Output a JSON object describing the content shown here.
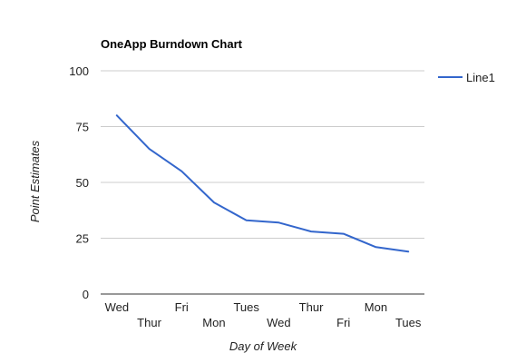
{
  "chart_data": {
    "type": "line",
    "title": "OneApp Burndown Chart",
    "xlabel": "Day of Week",
    "ylabel": "Point Estimates",
    "categories": [
      "Wed",
      "Thur",
      "Fri",
      "Mon",
      "Tues",
      "Wed",
      "Thur",
      "Fri",
      "Mon",
      "Tues"
    ],
    "series": [
      {
        "name": "Line1",
        "color": "#3366cc",
        "values": [
          80,
          65,
          55,
          41,
          33,
          32,
          28,
          27,
          21,
          19
        ]
      }
    ],
    "ylim": [
      0,
      100
    ],
    "yticks": [
      0,
      25,
      50,
      75,
      100
    ],
    "grid": true,
    "legend": "right"
  }
}
